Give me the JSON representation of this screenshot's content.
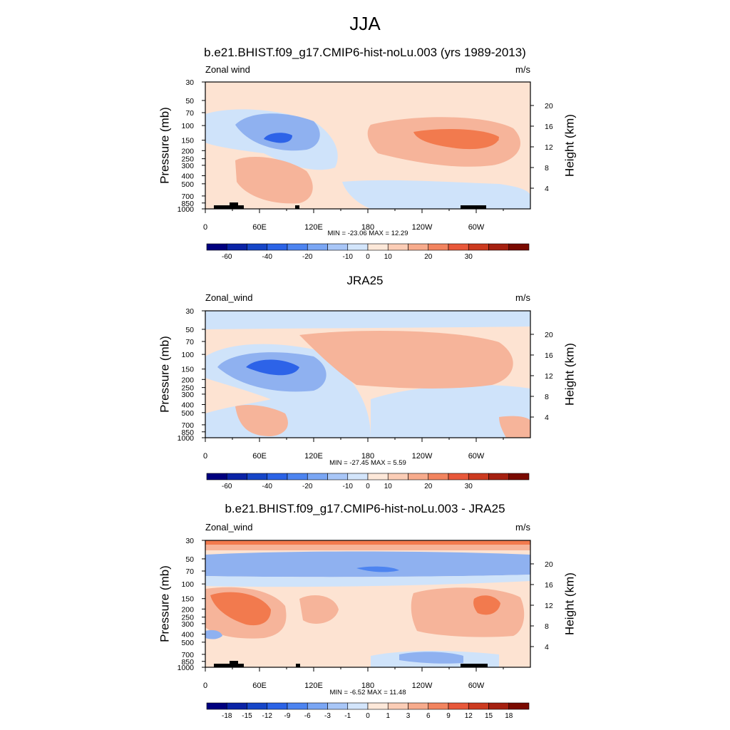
{
  "title": "JJA",
  "chart_data": [
    {
      "type": "heatmap",
      "title": "b.e21.BHIST.f09_g17.CMIP6-hist-noLu.003 (yrs 1989-2013)",
      "left_label": "Zonal wind",
      "right_label": "m/s",
      "ylabel": "Pressure (mb)",
      "ylabel_right": "Height (km)",
      "xticks": [
        "0",
        "60E",
        "120E",
        "180",
        "120W",
        "60W"
      ],
      "yticks": [
        "30",
        "50",
        "70",
        "100",
        "150",
        "200",
        "250",
        "300",
        "400",
        "500",
        "700",
        "850",
        "1000"
      ],
      "yticks_right": [
        "20",
        "16",
        "12",
        "8",
        "4"
      ],
      "stats": "MIN = -23.06  MAX =  12.29",
      "colorbar_labels": [
        "-60",
        "-40",
        "-20",
        "-10",
        "0",
        "10",
        "20",
        "30"
      ],
      "colors": {
        "strong_neg": "#2d63e8",
        "neg": "#8fb1f0",
        "weak_neg": "#cfe3fa",
        "weak_pos": "#fde3d2",
        "pos": "#f6b49a",
        "strong_pos": "#f27a4e"
      }
    },
    {
      "type": "heatmap",
      "title": "JRA25",
      "left_label": "Zonal_wind",
      "right_label": "m/s",
      "ylabel": "Pressure (mb)",
      "ylabel_right": "Height (km)",
      "xticks": [
        "0",
        "60E",
        "120E",
        "180",
        "120W",
        "60W"
      ],
      "yticks": [
        "30",
        "50",
        "70",
        "100",
        "150",
        "200",
        "250",
        "300",
        "400",
        "500",
        "700",
        "850",
        "1000"
      ],
      "yticks_right": [
        "20",
        "16",
        "12",
        "8",
        "4"
      ],
      "stats": "MIN = -27.45  MAX =   5.59",
      "colorbar_labels": [
        "-60",
        "-40",
        "-20",
        "-10",
        "0",
        "10",
        "20",
        "30"
      ]
    },
    {
      "type": "heatmap",
      "title": "b.e21.BHIST.f09_g17.CMIP6-hist-noLu.003 - JRA25",
      "left_label": "Zonal_wind",
      "right_label": "m/s",
      "ylabel": "Pressure (mb)",
      "ylabel_right": "Height (km)",
      "xticks": [
        "0",
        "60E",
        "120E",
        "180",
        "120W",
        "60W"
      ],
      "yticks": [
        "30",
        "50",
        "70",
        "100",
        "150",
        "200",
        "250",
        "300",
        "400",
        "500",
        "700",
        "850",
        "1000"
      ],
      "yticks_right": [
        "20",
        "16",
        "12",
        "8",
        "4"
      ],
      "stats": "MIN =  -6.52  MAX =  11.48",
      "colorbar_labels": [
        "-18",
        "-15",
        "-12",
        "-9",
        "-6",
        "-3",
        "-1",
        "0",
        "1",
        "3",
        "6",
        "9",
        "12",
        "15",
        "18"
      ]
    }
  ],
  "colorbar_colors": [
    "#00007f",
    "#0a23a6",
    "#1646c8",
    "#2b63e6",
    "#4d84f0",
    "#7aa6f4",
    "#a8c6f7",
    "#d3e5fb",
    "#fde8d9",
    "#fbcdb6",
    "#f7ab8c",
    "#f2845f",
    "#e8583a",
    "#cc3a1f",
    "#a52010",
    "#7a0a00"
  ]
}
